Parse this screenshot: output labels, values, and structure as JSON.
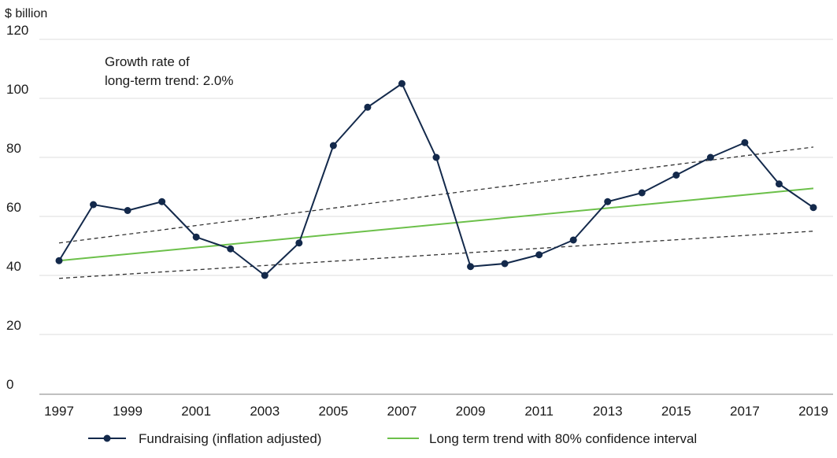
{
  "chart_data": {
    "type": "line",
    "ylabel": "$ billion",
    "ylim": [
      0,
      120
    ],
    "yticks": [
      "0",
      "20",
      "40",
      "60",
      "80",
      "100",
      "120"
    ],
    "xlim": [
      1997,
      2019
    ],
    "xticks": [
      "1997",
      "1999",
      "2001",
      "2003",
      "2005",
      "2007",
      "2009",
      "2011",
      "2013",
      "2015",
      "2017",
      "2019"
    ],
    "grid": true,
    "legend_position": "bottom",
    "annotation": [
      "Growth rate of",
      "long-term trend: 2.0%"
    ],
    "series": [
      {
        "name": "Fundraising (inflation adjusted)",
        "color": "#13294b",
        "x": [
          1997,
          1998,
          1999,
          2000,
          2001,
          2002,
          2003,
          2004,
          2005,
          2006,
          2007,
          2008,
          2009,
          2010,
          2011,
          2012,
          2013,
          2014,
          2015,
          2016,
          2017,
          2018,
          2019
        ],
        "values": [
          45,
          64,
          62,
          65,
          53,
          49,
          40,
          51,
          84,
          97,
          105,
          80,
          43,
          44,
          47,
          52,
          65,
          68,
          74,
          80,
          85,
          71,
          63
        ]
      },
      {
        "name": "Long term trend with 80% confidence interval",
        "color": "#6cc04a",
        "x": [
          1997,
          2019
        ],
        "values": [
          45,
          69.5
        ],
        "confidence_interval": {
          "color": "#333333",
          "upper": {
            "x": [
              1997,
              2019
            ],
            "values": [
              51,
              83.5
            ]
          },
          "lower": {
            "x": [
              1997,
              2019
            ],
            "values": [
              39,
              55
            ]
          }
        }
      }
    ]
  }
}
